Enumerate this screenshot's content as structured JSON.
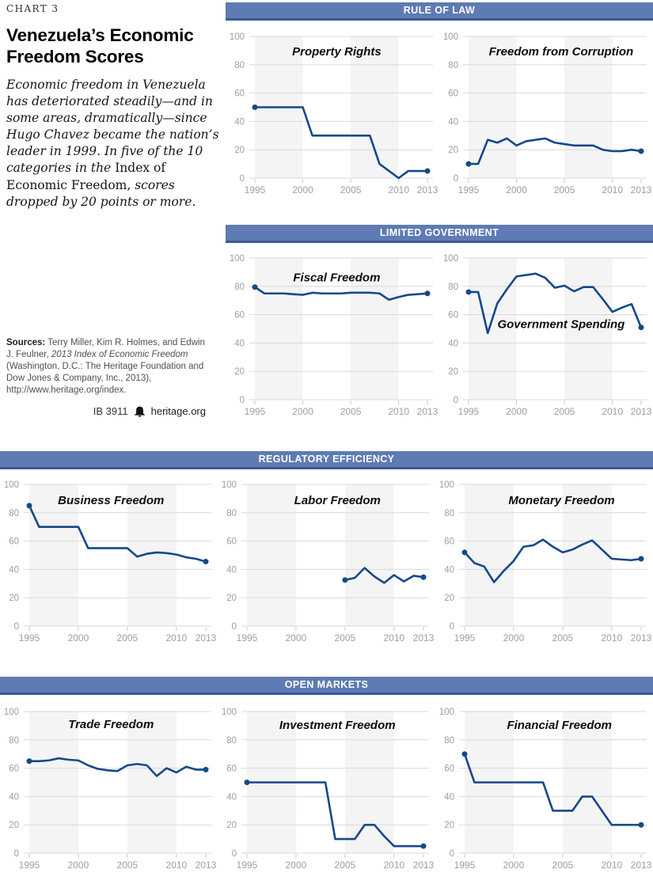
{
  "page": {
    "chart_label": "CHART 3",
    "title": "Venezuela’s Economic Freedom Scores",
    "intro_italic_1": "Economic freedom in Venezuela has deteriorated steadily—and in some areas, dramatically—since Hugo Chavez became the nation’s leader in 1999. In five of the 10 categories in the ",
    "intro_roman": "Index of Economic Freedom,",
    "intro_italic_2": " scores dropped by 20 points or more.",
    "sources_label": "Sources:",
    "sources_text_1": " Terry Miller, Kim R. Holmes, and Edwin J. Feulner, ",
    "sources_italic": "2013 Index of Economic Freedom",
    "sources_text_2": " (Washington, D.C.: The Heritage Foundation and Dow Jones & Company, Inc., 2013), http://www.heritage.org/index.",
    "footer_id": "IB 3911",
    "footer_site": "heritage.org",
    "bell_icon": "heritage-bell-icon"
  },
  "sections": [
    {
      "label": "RULE OF LAW"
    },
    {
      "label": "LIMITED GOVERNMENT"
    },
    {
      "label": "REGULATORY EFFICIENCY"
    },
    {
      "label": "OPEN MARKETS"
    }
  ],
  "chart_config": {
    "type": "line",
    "xlim": [
      1995,
      2013
    ],
    "ylim": [
      0,
      100
    ],
    "xticks": [
      1995,
      2000,
      2005,
      2010,
      2013
    ],
    "yticks": [
      0,
      20,
      40,
      60,
      80,
      100
    ],
    "shaded_year_bands": [
      [
        1995,
        2000
      ],
      [
        2005,
        2010
      ]
    ],
    "grid": true,
    "legend": "none",
    "line_color": "#14498a",
    "band_color": "#f4f4f4",
    "grid_color": "#d9d9d9",
    "tickmark_color": "#c9c9c9",
    "tick_text_color": "#9e9e9e",
    "header_bg": "#5e7bb3",
    "header_border": "#3a5a96",
    "endpoint_markers": true
  },
  "chart_data": [
    {
      "id": "property-rights",
      "type": "line",
      "section": "RULE OF LAW",
      "title": "Property Rights",
      "title_fx": 0.52,
      "title_fy": 0.175,
      "x": [
        1995,
        1996,
        1997,
        1998,
        1999,
        2000,
        2001,
        2002,
        2003,
        2004,
        2005,
        2006,
        2007,
        2008,
        2009,
        2010,
        2011,
        2012,
        2013
      ],
      "values": [
        50,
        50,
        50,
        50,
        50,
        50,
        30,
        30,
        30,
        30,
        30,
        30,
        30,
        10,
        5,
        0,
        5,
        5,
        5
      ]
    },
    {
      "id": "freedom-from-corruption",
      "type": "line",
      "section": "RULE OF LAW",
      "title": "Freedom from Corruption",
      "title_fx": 0.57,
      "title_fy": 0.175,
      "x": [
        1995,
        1996,
        1997,
        1998,
        1999,
        2000,
        2001,
        2002,
        2003,
        2004,
        2005,
        2006,
        2007,
        2008,
        2009,
        2010,
        2011,
        2012,
        2013
      ],
      "values": [
        10,
        10,
        27,
        25,
        28,
        23,
        26,
        27,
        28,
        25,
        24,
        23,
        23,
        23,
        20,
        19,
        19,
        20,
        19
      ]
    },
    {
      "id": "fiscal-freedom",
      "type": "line",
      "section": "LIMITED GOVERNMENT",
      "title": "Fiscal Freedom",
      "title_fx": 0.52,
      "title_fy": 0.2,
      "x": [
        1995,
        1996,
        1997,
        1998,
        1999,
        2000,
        2001,
        2002,
        2003,
        2004,
        2005,
        2006,
        2007,
        2008,
        2009,
        2010,
        2011,
        2012,
        2013
      ],
      "values": [
        79.5,
        75,
        75,
        75,
        74.5,
        74,
        75.5,
        75,
        75,
        75,
        75.5,
        75.5,
        75.5,
        75,
        70.5,
        72.5,
        74,
        74.5,
        75
      ]
    },
    {
      "id": "government-spending",
      "type": "line",
      "section": "LIMITED GOVERNMENT",
      "title": "Government Spending",
      "title_fx": 0.57,
      "title_fy": 0.47,
      "x": [
        1995,
        1996,
        1997,
        1998,
        1999,
        2000,
        2001,
        2002,
        2003,
        2004,
        2005,
        2006,
        2007,
        2008,
        2009,
        2010,
        2011,
        2012,
        2013
      ],
      "values": [
        76,
        76,
        47,
        68,
        78,
        87,
        88,
        89,
        86,
        79,
        80.5,
        76.5,
        79.5,
        79.5,
        71,
        62,
        65,
        67.5,
        51
      ]
    },
    {
      "id": "business-freedom",
      "type": "line",
      "section": "REGULATORY EFFICIENCY",
      "title": "Business Freedom",
      "title_fx": 0.51,
      "title_fy": 0.18,
      "x": [
        1995,
        1996,
        1997,
        1998,
        1999,
        2000,
        2001,
        2002,
        2003,
        2004,
        2005,
        2006,
        2007,
        2008,
        2009,
        2010,
        2011,
        2012,
        2013
      ],
      "values": [
        85,
        70,
        70,
        70,
        70,
        70,
        55,
        55,
        55,
        55,
        55,
        49,
        51,
        52,
        51.5,
        50.5,
        48.5,
        47.5,
        45.5
      ]
    },
    {
      "id": "labor-freedom",
      "type": "line",
      "section": "REGULATORY EFFICIENCY",
      "title": "Labor Freedom",
      "title_fx": 0.55,
      "title_fy": 0.18,
      "x": [
        2005,
        2006,
        2007,
        2008,
        2009,
        2010,
        2011,
        2012,
        2013
      ],
      "values": [
        32.5,
        34,
        41,
        35,
        30.5,
        36,
        31.5,
        35.5,
        34.5
      ]
    },
    {
      "id": "monetary-freedom",
      "type": "line",
      "section": "REGULATORY EFFICIENCY",
      "title": "Monetary Freedom",
      "title_fx": 0.58,
      "title_fy": 0.18,
      "x": [
        1995,
        1996,
        1997,
        1998,
        1999,
        2000,
        2001,
        2002,
        2003,
        2004,
        2005,
        2006,
        2007,
        2008,
        2009,
        2010,
        2011,
        2012,
        2013
      ],
      "values": [
        52,
        44.5,
        42,
        31,
        39,
        46,
        56,
        57,
        61,
        56,
        52,
        54,
        57.5,
        60.5,
        54,
        47.5,
        47,
        46.5,
        47.5
      ]
    },
    {
      "id": "trade-freedom",
      "type": "line",
      "section": "OPEN MARKETS",
      "title": "Trade Freedom",
      "title_fx": 0.51,
      "title_fy": 0.16,
      "x": [
        1995,
        1996,
        1997,
        1998,
        1999,
        2000,
        2001,
        2002,
        2003,
        2004,
        2005,
        2006,
        2007,
        2008,
        2009,
        2010,
        2011,
        2012,
        2013
      ],
      "values": [
        65,
        65,
        65.5,
        67,
        66,
        65.5,
        62,
        59.5,
        58.5,
        58,
        62,
        63,
        62,
        54.5,
        60,
        57,
        61,
        59,
        59
      ]
    },
    {
      "id": "investment-freedom",
      "type": "line",
      "section": "OPEN MARKETS",
      "title": "Investment Freedom",
      "title_fx": 0.55,
      "title_fy": 0.165,
      "x": [
        1995,
        1996,
        1997,
        1998,
        1999,
        2000,
        2001,
        2002,
        2003,
        2004,
        2005,
        2006,
        2007,
        2008,
        2009,
        2010,
        2011,
        2012,
        2013
      ],
      "values": [
        50,
        50,
        50,
        50,
        50,
        50,
        50,
        50,
        50,
        10,
        10,
        10,
        20,
        20,
        12,
        5,
        5,
        5,
        5
      ]
    },
    {
      "id": "financial-freedom",
      "type": "line",
      "section": "OPEN MARKETS",
      "title": "Financial Freedom",
      "title_fx": 0.57,
      "title_fy": 0.165,
      "x": [
        1995,
        1996,
        1997,
        1998,
        1999,
        2000,
        2001,
        2002,
        2003,
        2004,
        2005,
        2006,
        2007,
        2008,
        2009,
        2010,
        2011,
        2012,
        2013
      ],
      "values": [
        70,
        50,
        50,
        50,
        50,
        50,
        50,
        50,
        50,
        30,
        30,
        30,
        40,
        40,
        30,
        20,
        20,
        20,
        20
      ]
    }
  ]
}
